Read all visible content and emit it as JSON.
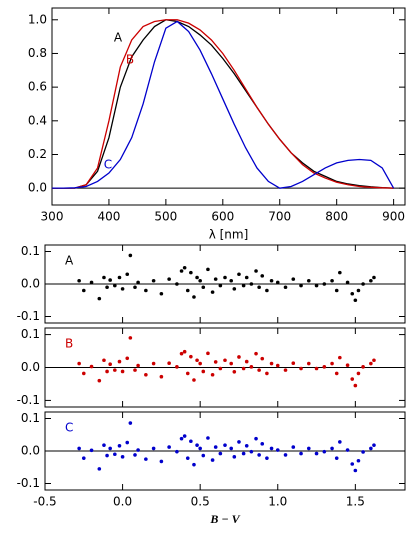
{
  "chart_data": [
    {
      "type": "line",
      "x": [
        300,
        320,
        340,
        360,
        380,
        400,
        420,
        440,
        460,
        480,
        500,
        520,
        540,
        560,
        580,
        600,
        620,
        640,
        660,
        680,
        700,
        720,
        740,
        760,
        780,
        800,
        820,
        840,
        860,
        880,
        900
      ],
      "series": [
        {
          "name": "A",
          "color": "#000000",
          "values": [
            0,
            0,
            0,
            0.02,
            0.1,
            0.3,
            0.6,
            0.78,
            0.88,
            0.96,
            1.0,
            0.99,
            0.96,
            0.91,
            0.85,
            0.77,
            0.68,
            0.58,
            0.48,
            0.38,
            0.29,
            0.21,
            0.15,
            0.1,
            0.07,
            0.04,
            0.025,
            0.015,
            0.008,
            0.003,
            0
          ]
        },
        {
          "name": "B",
          "color": "#cc0000",
          "values": [
            0,
            0,
            0,
            0.02,
            0.12,
            0.4,
            0.72,
            0.88,
            0.96,
            0.99,
            1.0,
            1.0,
            0.98,
            0.94,
            0.88,
            0.8,
            0.7,
            0.59,
            0.48,
            0.38,
            0.29,
            0.21,
            0.14,
            0.09,
            0.06,
            0.035,
            0.02,
            0.01,
            0.005,
            0.002,
            0
          ]
        },
        {
          "name": "C",
          "color": "#0000cc",
          "values": [
            0,
            0,
            0.002,
            0.01,
            0.04,
            0.09,
            0.17,
            0.3,
            0.5,
            0.75,
            0.95,
            0.99,
            0.93,
            0.82,
            0.68,
            0.53,
            0.38,
            0.24,
            0.12,
            0.04,
            0.0,
            0.01,
            0.04,
            0.08,
            0.12,
            0.15,
            0.165,
            0.17,
            0.165,
            0.12,
            0
          ]
        }
      ],
      "xlim": [
        300,
        920
      ],
      "ylim": [
        -0.1,
        1.07
      ],
      "xticks": [
        300,
        400,
        500,
        600,
        700,
        800,
        900
      ],
      "yticks": [
        {
          "value": 0,
          "label": "0.0"
        },
        0.2,
        0.4,
        0.6,
        0.8,
        {
          "value": 1,
          "label": "1.0"
        }
      ],
      "xlabel": "λ [nm]"
    },
    {
      "type": "scatter",
      "label": "A",
      "color": "#000000",
      "x": [
        -0.28,
        -0.25,
        -0.2,
        -0.15,
        -0.12,
        -0.1,
        -0.08,
        -0.05,
        -0.02,
        0.0,
        0.03,
        0.05,
        0.08,
        0.1,
        0.15,
        0.2,
        0.25,
        0.3,
        0.35,
        0.38,
        0.4,
        0.42,
        0.44,
        0.46,
        0.48,
        0.5,
        0.52,
        0.55,
        0.58,
        0.6,
        0.63,
        0.66,
        0.7,
        0.72,
        0.75,
        0.78,
        0.8,
        0.83,
        0.86,
        0.88,
        0.9,
        0.93,
        0.96,
        1.0,
        1.05,
        1.1,
        1.15,
        1.2,
        1.25,
        1.3,
        1.35,
        1.38,
        1.4,
        1.45,
        1.48,
        1.5,
        1.52,
        1.55,
        1.6,
        1.62
      ],
      "y": [
        0.01,
        -0.02,
        0.005,
        -0.045,
        0.02,
        -0.01,
        0.012,
        -0.005,
        0.02,
        -0.015,
        0.03,
        0.088,
        -0.01,
        0.005,
        -0.02,
        0.01,
        -0.03,
        0.015,
        0.0,
        0.04,
        0.05,
        -0.02,
        0.035,
        -0.04,
        0.02,
        0.01,
        -0.01,
        0.045,
        -0.025,
        0.015,
        -0.005,
        0.02,
        0.01,
        -0.015,
        0.03,
        -0.005,
        0.02,
        0.0,
        0.04,
        -0.01,
        0.025,
        -0.02,
        0.01,
        0.005,
        -0.01,
        0.015,
        -0.005,
        0.01,
        -0.005,
        0.0,
        0.01,
        -0.02,
        0.035,
        0.005,
        -0.03,
        -0.05,
        -0.02,
        0.0,
        0.01,
        0.02
      ],
      "xlim": [
        -0.5,
        1.82
      ],
      "ylim": [
        -0.12,
        0.12
      ],
      "xticks": [
        -0.5,
        {
          "value": 0,
          "label": "0.0"
        },
        0.5,
        {
          "value": 1,
          "label": "1.0"
        },
        1.5
      ],
      "yticks": [
        -0.1,
        {
          "value": 0,
          "label": "0.0"
        },
        0.1
      ]
    },
    {
      "type": "scatter",
      "label": "B",
      "color": "#cc0000",
      "x": [
        -0.28,
        -0.25,
        -0.2,
        -0.15,
        -0.12,
        -0.1,
        -0.08,
        -0.05,
        -0.02,
        0.0,
        0.03,
        0.05,
        0.08,
        0.1,
        0.15,
        0.2,
        0.25,
        0.3,
        0.35,
        0.38,
        0.4,
        0.42,
        0.44,
        0.46,
        0.48,
        0.5,
        0.52,
        0.55,
        0.58,
        0.6,
        0.63,
        0.66,
        0.7,
        0.72,
        0.75,
        0.78,
        0.8,
        0.83,
        0.86,
        0.88,
        0.9,
        0.93,
        0.96,
        1.0,
        1.05,
        1.1,
        1.15,
        1.2,
        1.25,
        1.3,
        1.35,
        1.38,
        1.4,
        1.45,
        1.48,
        1.5,
        1.52,
        1.55,
        1.6,
        1.62
      ],
      "y": [
        0.012,
        -0.018,
        0.003,
        -0.04,
        0.022,
        -0.012,
        0.01,
        -0.008,
        0.018,
        -0.012,
        0.028,
        0.09,
        -0.008,
        0.006,
        -0.022,
        0.012,
        -0.028,
        0.013,
        0.002,
        0.042,
        0.048,
        -0.018,
        0.033,
        -0.038,
        0.022,
        0.012,
        -0.012,
        0.043,
        -0.022,
        0.017,
        -0.003,
        0.022,
        0.012,
        -0.013,
        0.032,
        -0.003,
        0.018,
        0.002,
        0.042,
        -0.008,
        0.027,
        -0.018,
        0.012,
        0.006,
        -0.008,
        0.013,
        -0.003,
        0.012,
        -0.003,
        0.002,
        0.012,
        -0.018,
        0.03,
        0.007,
        -0.035,
        -0.055,
        -0.018,
        0.002,
        0.012,
        0.022
      ],
      "xlim": [
        -0.5,
        1.82
      ],
      "ylim": [
        -0.12,
        0.12
      ],
      "xticks": [
        -0.5,
        {
          "value": 0,
          "label": "0.0"
        },
        0.5,
        {
          "value": 1,
          "label": "1.0"
        },
        1.5
      ],
      "yticks": [
        -0.1,
        {
          "value": 0,
          "label": "0.0"
        },
        0.1
      ]
    },
    {
      "type": "scatter",
      "label": "C",
      "color": "#0000cc",
      "x": [
        -0.28,
        -0.25,
        -0.2,
        -0.15,
        -0.12,
        -0.1,
        -0.08,
        -0.05,
        -0.02,
        0.0,
        0.03,
        0.05,
        0.08,
        0.1,
        0.15,
        0.2,
        0.25,
        0.3,
        0.35,
        0.38,
        0.4,
        0.42,
        0.44,
        0.46,
        0.48,
        0.5,
        0.52,
        0.55,
        0.58,
        0.6,
        0.63,
        0.66,
        0.7,
        0.72,
        0.75,
        0.78,
        0.8,
        0.83,
        0.86,
        0.88,
        0.9,
        0.93,
        0.96,
        1.0,
        1.05,
        1.1,
        1.15,
        1.2,
        1.25,
        1.3,
        1.35,
        1.38,
        1.4,
        1.45,
        1.48,
        1.5,
        1.52,
        1.55,
        1.6,
        1.62
      ],
      "y": [
        0.008,
        -0.022,
        0.002,
        -0.055,
        0.018,
        -0.014,
        0.008,
        -0.01,
        0.016,
        -0.018,
        0.026,
        0.086,
        -0.012,
        0.003,
        -0.025,
        0.008,
        -0.032,
        0.012,
        -0.002,
        0.038,
        0.046,
        -0.022,
        0.03,
        -0.042,
        0.018,
        0.008,
        -0.014,
        0.04,
        -0.028,
        0.012,
        -0.008,
        0.018,
        0.008,
        -0.018,
        0.028,
        -0.008,
        0.016,
        -0.002,
        0.038,
        -0.012,
        0.022,
        -0.022,
        0.008,
        0.003,
        -0.012,
        0.012,
        -0.008,
        0.008,
        -0.008,
        -0.002,
        0.008,
        -0.022,
        0.028,
        0.003,
        -0.04,
        -0.06,
        -0.03,
        -0.003,
        0.008,
        0.018
      ],
      "xlim": [
        -0.5,
        1.82
      ],
      "ylim": [
        -0.12,
        0.12
      ],
      "xticks": [
        -0.5,
        {
          "value": 0,
          "label": "0.0"
        },
        0.5,
        {
          "value": 1,
          "label": "1.0"
        },
        1.5
      ],
      "yticks": [
        -0.1,
        {
          "value": 0,
          "label": "0.0"
        },
        0.1
      ],
      "xlabel": "B − V"
    }
  ]
}
